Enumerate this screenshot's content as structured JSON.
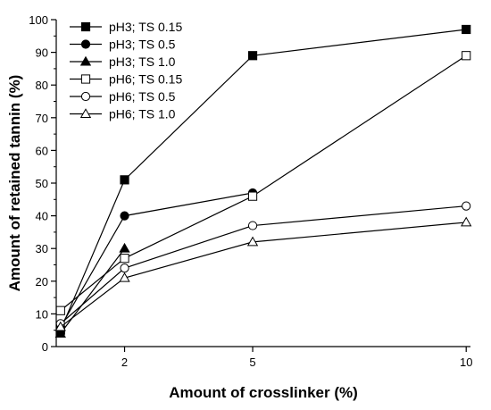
{
  "chart_data": {
    "type": "line",
    "xlabel": "Amount of crosslinker (%)",
    "ylabel": "Amount of retained tannin (%)",
    "x_ticks": [
      2,
      5,
      10
    ],
    "y_ticks": [
      0,
      10,
      20,
      30,
      40,
      50,
      60,
      70,
      80,
      90,
      100
    ],
    "xlim": [
      0.4,
      10.1
    ],
    "ylim": [
      0,
      100
    ],
    "legend_position": "top-left",
    "grid": false,
    "series": [
      {
        "name": "pH3; TS 0.15",
        "marker": "square",
        "fill": "filled",
        "x": [
          0.5,
          2,
          5,
          10
        ],
        "y": [
          5,
          51,
          89,
          97
        ]
      },
      {
        "name": "pH3; TS 0.5",
        "marker": "circle",
        "fill": "filled",
        "x": [
          0.5,
          2,
          5,
          10
        ],
        "y": [
          6,
          40,
          47,
          null
        ]
      },
      {
        "name": "pH3; TS 1.0",
        "marker": "triangle",
        "fill": "filled",
        "x": [
          0.5,
          2,
          5,
          10
        ],
        "y": [
          4,
          30,
          null,
          null
        ]
      },
      {
        "name": "pH6; TS 0.15",
        "marker": "square",
        "fill": "open",
        "x": [
          0.5,
          2,
          5,
          10
        ],
        "y": [
          11,
          27,
          46,
          89
        ]
      },
      {
        "name": "pH6; TS 0.5",
        "marker": "circle",
        "fill": "open",
        "x": [
          0.5,
          2,
          5,
          10
        ],
        "y": [
          7,
          24,
          37,
          43
        ]
      },
      {
        "name": "pH6; TS 1.0",
        "marker": "triangle",
        "fill": "open",
        "x": [
          0.5,
          2,
          5,
          10
        ],
        "y": [
          6,
          21,
          32,
          38
        ]
      }
    ]
  }
}
